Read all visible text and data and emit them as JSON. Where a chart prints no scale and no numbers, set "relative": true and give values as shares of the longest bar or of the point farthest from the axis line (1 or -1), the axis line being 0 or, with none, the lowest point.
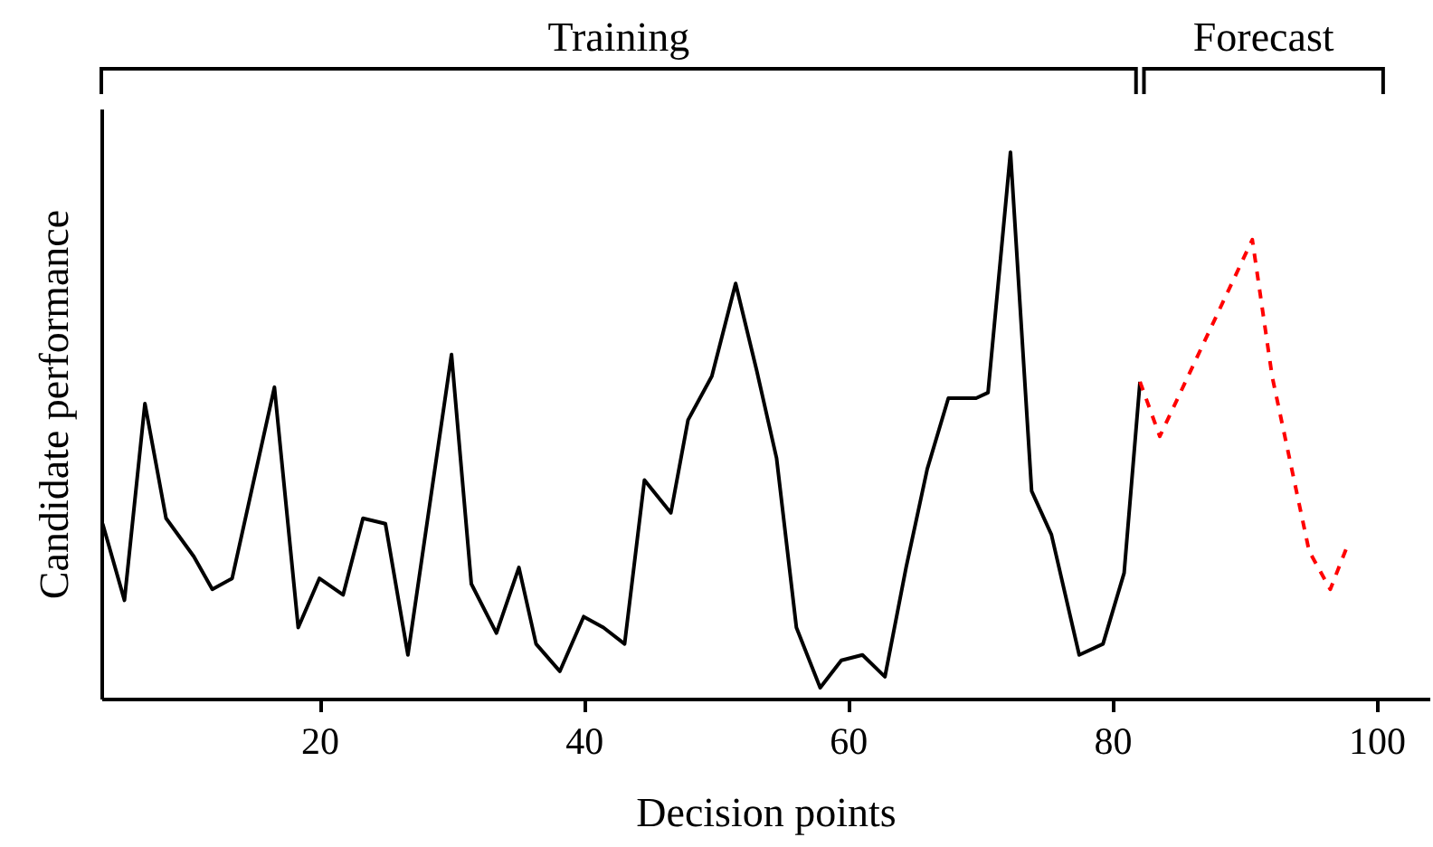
{
  "chart_data": {
    "type": "line",
    "xlabel": "Decision points",
    "ylabel": "Candidate performance",
    "relative": true,
    "tick_labels": "x",
    "grid": false,
    "xlim": [
      3.5,
      104
    ],
    "annotations": [
      "Training",
      "Forecast"
    ],
    "xticks": [
      20,
      40,
      60,
      80,
      100
    ],
    "series": [
      {
        "color": "#000000",
        "line_style": "solid",
        "x": [
          3.6,
          5.25,
          6.8,
          8.4,
          10.5,
          11.9,
          13.4,
          16.6,
          18.4,
          20,
          21.8,
          23.3,
          25,
          26.7,
          30,
          31.5,
          33.4,
          35.1,
          36.4,
          38.2,
          40,
          41.5,
          43.1,
          44.6,
          46.6,
          47.9,
          49.7,
          51.5,
          53.1,
          54.6,
          56.1,
          57.9,
          59.5,
          61.1,
          62.8,
          64.4,
          66,
          67.6,
          69.7,
          70.6,
          72.3,
          73.9,
          75.4,
          77.5,
          79.3,
          80.9,
          82.1
        ],
        "values": [
          0.32,
          0.18,
          0.54,
          0.33,
          0.26,
          0.2,
          0.22,
          0.57,
          0.13,
          0.22,
          0.19,
          0.33,
          0.32,
          0.08,
          0.63,
          0.21,
          0.12,
          0.24,
          0.1,
          0.05,
          0.15,
          0.13,
          0.1,
          0.4,
          0.34,
          0.51,
          0.59,
          0.76,
          0.6,
          0.44,
          0.13,
          0.02,
          0.07,
          0.08,
          0.04,
          0.24,
          0.42,
          0.55,
          0.55,
          0.56,
          1,
          0.38,
          0.3,
          0.08,
          0.1,
          0.23,
          0.58
        ]
      },
      {
        "color": "#ff0000",
        "line_style": "dashed",
        "x": [
          82.1,
          83.6,
          90.6,
          92.1,
          94.9,
          96.5,
          97.8
        ],
        "values": [
          0.58,
          0.48,
          0.84,
          0.59,
          0.27,
          0.2,
          0.28
        ]
      }
    ]
  }
}
